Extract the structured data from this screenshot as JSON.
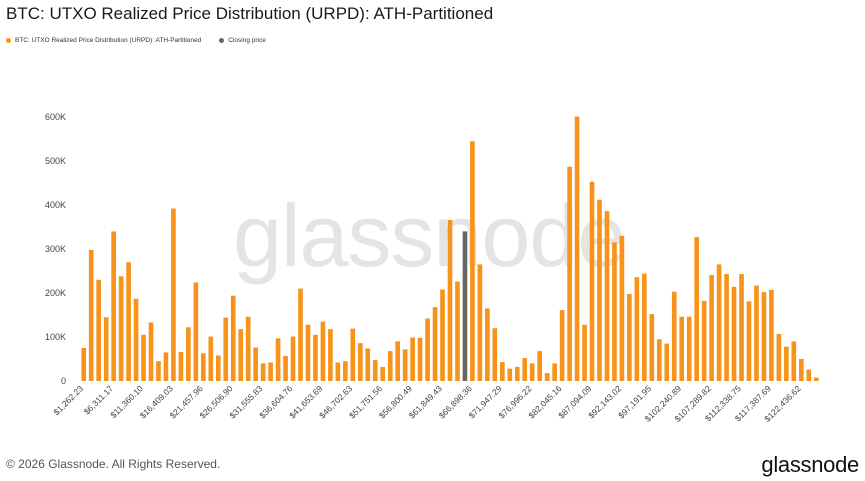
{
  "title": "BTC: UTXO Realized Price Distribution (URPD): ATH-Partitioned",
  "legend": [
    {
      "label": "BTC: UTXO Realized Price Distribution (URPD): ATH-Partitioned",
      "color": "#f7931a"
    },
    {
      "label": "Closing price",
      "color": "#666666"
    }
  ],
  "footer": {
    "copyright": "© 2026 Glassnode. All Rights Reserved.",
    "logo": "glassnode"
  },
  "watermark": "glassnode",
  "colors": {
    "bar": "#f7931a",
    "closing": "#666666",
    "axis_text": "#444444"
  },
  "chart_data": {
    "type": "bar",
    "ylim": [
      0,
      600000
    ],
    "y_ticks": [
      "0",
      "100K",
      "200K",
      "300K",
      "400K",
      "500K",
      "600K"
    ],
    "x_tick_labels": [
      "$1,262.23",
      "$6,311.17",
      "$11,360.10",
      "$16,409.03",
      "$21,457.96",
      "$26,506.90",
      "$31,555.83",
      "$36,604.76",
      "$41,653.69",
      "$46,702.63",
      "$51,751.56",
      "$56,800.49",
      "$61,849.43",
      "$66,898.36",
      "$71,947.29",
      "$76,996.22",
      "$82,045.16",
      "$87,094.09",
      "$92,143.02",
      "$97,191.95",
      "$102,240.89",
      "$107,289.82",
      "$112,338.75",
      "$117,387.69",
      "$122,436.62"
    ],
    "series": [
      {
        "name": "BTC: UTXO Realized Price Distribution (URPD): ATH-Partitioned",
        "values": [
          75000,
          298000,
          230000,
          145000,
          340000,
          238000,
          270000,
          187000,
          105000,
          133000,
          45000,
          65000,
          392000,
          66000,
          122000,
          224000,
          63000,
          101000,
          58000,
          144000,
          194000,
          118000,
          146000,
          76000,
          40000,
          42000,
          97000,
          57000,
          101000,
          210000,
          128000,
          105000,
          135000,
          118000,
          42000,
          45000,
          119000,
          86000,
          74000,
          48000,
          32000,
          68000,
          90000,
          72000,
          99000,
          98000,
          142000,
          168000,
          208000,
          366000,
          226000,
          0,
          545000,
          265000,
          165000,
          120000,
          43000,
          28000,
          32000,
          52000,
          40000,
          68000,
          18000,
          40000,
          161000,
          487000,
          601000,
          128000,
          453000,
          412000,
          386000,
          315000,
          330000,
          198000,
          236000,
          244000,
          152000,
          95000,
          85000,
          203000,
          146000,
          146000,
          327000,
          182000,
          241000,
          265000,
          243000,
          214000,
          243000,
          181000,
          217000,
          202000,
          207000,
          107000,
          78000,
          90000,
          50000,
          26000,
          8000
        ]
      },
      {
        "name": "Closing price",
        "index": 51,
        "value": 340000
      }
    ]
  }
}
